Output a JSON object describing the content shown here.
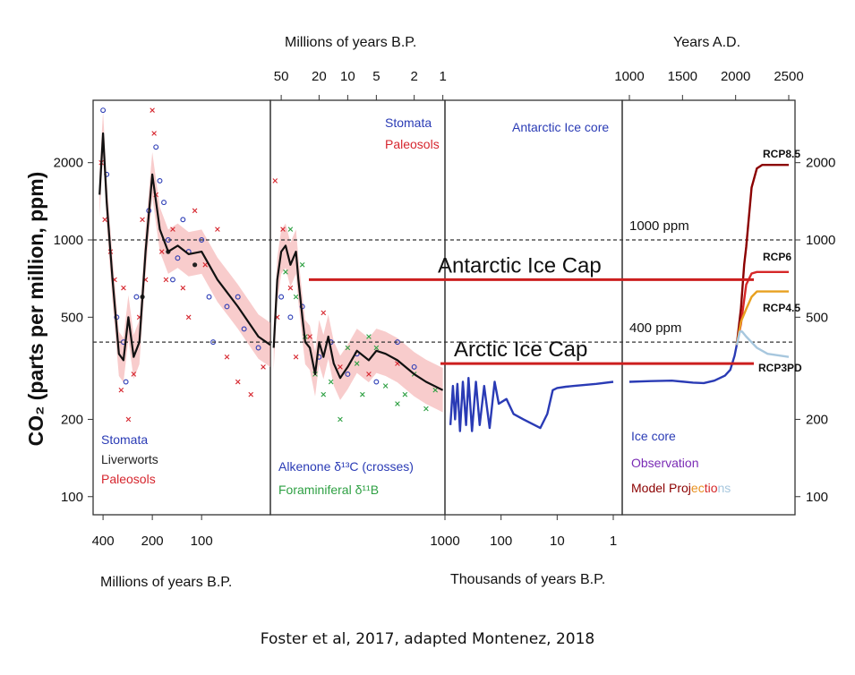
{
  "chart_data": {
    "type": "scatter",
    "ylabel": "CO₂ (parts per million, ppm)",
    "yscale": "log",
    "ylim": [
      85,
      3500
    ],
    "y_ticks": [
      "100",
      "200",
      "500",
      "1000",
      "2000"
    ],
    "reference_lines": [
      {
        "label": "1000 ppm",
        "value": 1000
      },
      {
        "label": "400 ppm",
        "value": 400
      }
    ],
    "annotations": [
      {
        "text": "Antarctic Ice Cap",
        "value": 700,
        "color": "#cc1f1f"
      },
      {
        "text": "Arctic Ice Cap",
        "value": 330,
        "color": "#cc1f1f"
      }
    ],
    "panels": [
      {
        "id": "p1",
        "x_title_bottom": "Millions of years B.P.",
        "x_ticks_bottom": [
          "400",
          "200",
          "100"
        ],
        "legend": [
          {
            "label": "Stomata",
            "color": "#2a3bb5"
          },
          {
            "label": "Liverworts",
            "color": "#222222"
          },
          {
            "label": "Paleosols",
            "color": "#d6262e"
          }
        ],
        "trend": [
          [
            420,
            1500
          ],
          [
            400,
            2600
          ],
          [
            380,
            1400
          ],
          [
            350,
            700
          ],
          [
            320,
            360
          ],
          [
            300,
            340
          ],
          [
            280,
            500
          ],
          [
            260,
            350
          ],
          [
            240,
            400
          ],
          [
            220,
            900
          ],
          [
            200,
            1800
          ],
          [
            180,
            1100
          ],
          [
            160,
            900
          ],
          [
            140,
            950
          ],
          [
            120,
            880
          ],
          [
            100,
            900
          ],
          [
            80,
            700
          ],
          [
            60,
            550
          ],
          [
            45,
            420
          ],
          [
            38,
            390
          ]
        ],
        "stomata": [
          [
            400,
            3200
          ],
          [
            380,
            1800
          ],
          [
            330,
            500
          ],
          [
            300,
            400
          ],
          [
            290,
            280
          ],
          [
            250,
            600
          ],
          [
            210,
            1300
          ],
          [
            190,
            2300
          ],
          [
            180,
            1700
          ],
          [
            170,
            1400
          ],
          [
            160,
            1000
          ],
          [
            140,
            850
          ],
          [
            120,
            900
          ],
          [
            100,
            1000
          ],
          [
            90,
            600
          ],
          [
            70,
            550
          ],
          [
            55,
            450
          ],
          [
            45,
            380
          ],
          [
            150,
            700
          ],
          [
            130,
            1200
          ],
          [
            85,
            400
          ],
          [
            60,
            600
          ]
        ],
        "paleosols": [
          [
            410,
            2000
          ],
          [
            390,
            1200
          ],
          [
            360,
            900
          ],
          [
            340,
            700
          ],
          [
            310,
            260
          ],
          [
            280,
            200
          ],
          [
            260,
            300
          ],
          [
            240,
            500
          ],
          [
            220,
            700
          ],
          [
            200,
            3200
          ],
          [
            195,
            2600
          ],
          [
            190,
            1500
          ],
          [
            175,
            900
          ],
          [
            165,
            700
          ],
          [
            150,
            1100
          ],
          [
            130,
            650
          ],
          [
            110,
            1300
          ],
          [
            95,
            800
          ],
          [
            80,
            1100
          ],
          [
            70,
            350
          ],
          [
            60,
            280
          ],
          [
            50,
            250
          ],
          [
            42,
            320
          ],
          [
            300,
            650
          ],
          [
            230,
            1200
          ],
          [
            120,
            500
          ]
        ],
        "liverworts": [
          [
            230,
            600
          ],
          [
            160,
            900
          ],
          [
            110,
            800
          ]
        ]
      },
      {
        "id": "p2",
        "x_title_top": "Millions of years B.P.",
        "x_ticks_top": [
          "50",
          "20",
          "10",
          "5",
          "2",
          "1"
        ],
        "series_labels": [
          {
            "label": "Stomata",
            "color": "#2a3bb5"
          },
          {
            "label": "Paleosols",
            "color": "#d6262e"
          }
        ],
        "legend": [
          {
            "label": "Alkenone δ¹³C (crosses)",
            "color": "#2a3bb5"
          },
          {
            "label": "Foraminiferal δ¹¹B",
            "color": "#2ea043"
          }
        ],
        "trend": [
          [
            60,
            380
          ],
          [
            55,
            700
          ],
          [
            50,
            900
          ],
          [
            45,
            950
          ],
          [
            40,
            800
          ],
          [
            35,
            900
          ],
          [
            33,
            700
          ],
          [
            30,
            500
          ],
          [
            28,
            400
          ],
          [
            25,
            380
          ],
          [
            22,
            300
          ],
          [
            20,
            400
          ],
          [
            18,
            350
          ],
          [
            16,
            420
          ],
          [
            14,
            330
          ],
          [
            12,
            290
          ],
          [
            10,
            320
          ],
          [
            8,
            370
          ],
          [
            6,
            340
          ],
          [
            5,
            370
          ],
          [
            4,
            360
          ],
          [
            3,
            340
          ],
          [
            2,
            300
          ],
          [
            1.5,
            280
          ],
          [
            1,
            260
          ]
        ],
        "stomata": [
          [
            50,
            600
          ],
          [
            40,
            500
          ],
          [
            30,
            550
          ],
          [
            20,
            350
          ],
          [
            15,
            400
          ],
          [
            10,
            300
          ],
          [
            8,
            360
          ],
          [
            5,
            280
          ],
          [
            3,
            400
          ],
          [
            2,
            320
          ]
        ],
        "paleosols": [
          [
            58,
            1700
          ],
          [
            55,
            500
          ],
          [
            48,
            1100
          ],
          [
            40,
            650
          ],
          [
            35,
            350
          ],
          [
            25,
            420
          ],
          [
            18,
            520
          ],
          [
            12,
            320
          ],
          [
            6,
            300
          ],
          [
            3,
            330
          ]
        ],
        "foram": [
          [
            45,
            750
          ],
          [
            40,
            1100
          ],
          [
            30,
            800
          ],
          [
            22,
            300
          ],
          [
            18,
            250
          ],
          [
            15,
            280
          ],
          [
            12,
            200
          ],
          [
            10,
            380
          ],
          [
            8,
            330
          ],
          [
            6,
            420
          ],
          [
            5,
            380
          ],
          [
            4,
            270
          ],
          [
            3,
            230
          ],
          [
            2.5,
            250
          ],
          [
            2,
            300
          ],
          [
            1.5,
            220
          ],
          [
            1.2,
            260
          ],
          [
            35,
            600
          ],
          [
            28,
            420
          ],
          [
            7,
            250
          ]
        ]
      },
      {
        "id": "p3",
        "x_title_bottom": "Thousands of years B.P.",
        "x_ticks_bottom": [
          "1000",
          "100",
          "10",
          "1"
        ],
        "series_labels": [
          {
            "label": "Antarctic Ice core",
            "color": "#2a3bb5"
          }
        ],
        "ice_core": [
          [
            800,
            190
          ],
          [
            720,
            270
          ],
          [
            660,
            200
          ],
          [
            600,
            275
          ],
          [
            540,
            180
          ],
          [
            480,
            280
          ],
          [
            420,
            190
          ],
          [
            380,
            290
          ],
          [
            330,
            180
          ],
          [
            280,
            280
          ],
          [
            240,
            190
          ],
          [
            200,
            270
          ],
          [
            160,
            185
          ],
          [
            130,
            280
          ],
          [
            110,
            230
          ],
          [
            80,
            240
          ],
          [
            60,
            210
          ],
          [
            40,
            200
          ],
          [
            20,
            185
          ],
          [
            15,
            210
          ],
          [
            12,
            260
          ],
          [
            10,
            265
          ],
          [
            7,
            268
          ],
          [
            5,
            270
          ],
          [
            2,
            275
          ],
          [
            1,
            280
          ]
        ]
      },
      {
        "id": "p4",
        "x_title_top": "Years A.D.",
        "x_ticks_top": [
          "1000",
          "1500",
          "2000",
          "2500"
        ],
        "legend": [
          {
            "label": "Ice core",
            "color": "#2a3bb5"
          },
          {
            "label": "Observation",
            "color": "#7a2bb5"
          },
          {
            "label": "Model Proj",
            "color": "#8b0000"
          },
          {
            "label": "ec",
            "color": "#e8901e"
          },
          {
            "label": "tio",
            "color": "#d62728"
          },
          {
            "label": "ns",
            "color": "#a7c7de"
          }
        ],
        "series": [
          {
            "name": "Ice core",
            "color": "#2a3bb5",
            "points": [
              [
                1000,
                280
              ],
              [
                1200,
                282
              ],
              [
                1400,
                283
              ],
              [
                1600,
                278
              ],
              [
                1700,
                277
              ],
              [
                1800,
                283
              ],
              [
                1900,
                296
              ],
              [
                1950,
                312
              ],
              [
                1990,
                354
              ],
              [
                2010,
                390
              ]
            ]
          },
          {
            "name": "RCP8.5",
            "color": "#8b0000",
            "points": [
              [
                2010,
                390
              ],
              [
                2050,
                540
              ],
              [
                2080,
                800
              ],
              [
                2100,
                940
              ],
              [
                2150,
                1600
              ],
              [
                2200,
                1900
              ],
              [
                2250,
                1960
              ],
              [
                2300,
                1960
              ],
              [
                2500,
                1960
              ]
            ]
          },
          {
            "name": "RCP6",
            "color": "#d62728",
            "points": [
              [
                2010,
                390
              ],
              [
                2050,
                470
              ],
              [
                2100,
                670
              ],
              [
                2150,
                740
              ],
              [
                2200,
                750
              ],
              [
                2500,
                750
              ]
            ]
          },
          {
            "name": "RCP4.5",
            "color": "#e8a020",
            "points": [
              [
                2010,
                390
              ],
              [
                2050,
                480
              ],
              [
                2100,
                538
              ],
              [
                2150,
                600
              ],
              [
                2200,
                630
              ],
              [
                2500,
                630
              ]
            ]
          },
          {
            "name": "RCP3PD",
            "color": "#a7c7de",
            "points": [
              [
                2010,
                390
              ],
              [
                2040,
                440
              ],
              [
                2060,
                440
              ],
              [
                2100,
                420
              ],
              [
                2200,
                380
              ],
              [
                2300,
                360
              ],
              [
                2500,
                350
              ]
            ]
          }
        ],
        "end_labels": [
          "RCP8.5",
          "RCP6",
          "RCP4.5",
          "RCP3PD"
        ]
      }
    ],
    "caption": "Foster et al, 2017, adapted Montenez, 2018"
  }
}
